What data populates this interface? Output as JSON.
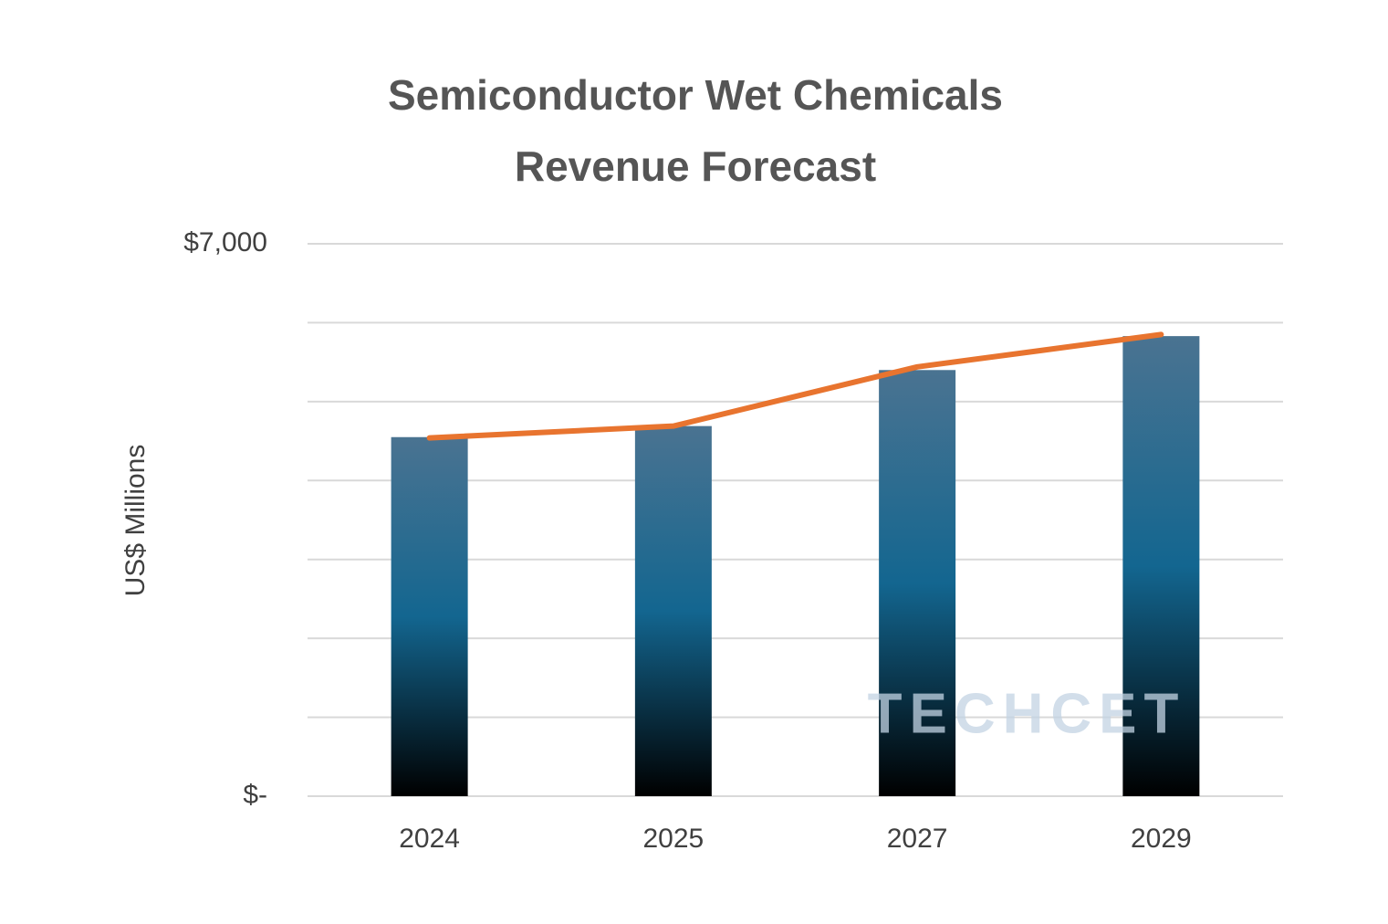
{
  "chart_data": {
    "type": "bar-line",
    "title": [
      "Semiconductor Wet Chemicals",
      "Revenue Forecast"
    ],
    "y_label": "US$ Millions",
    "watermark": "TECHCET",
    "categories": [
      "2024",
      "2025",
      "2027",
      "2029"
    ],
    "series": [
      {
        "type": "bar",
        "color": "#0b5479",
        "values": [
          4550,
          4690,
          5400,
          5830
        ]
      },
      {
        "type": "line",
        "color": "#e8742f",
        "values": [
          4540,
          4690,
          5440,
          5850
        ]
      }
    ],
    "ylim": [
      0,
      7000
    ],
    "yticks": [
      {
        "value": 0,
        "label": "$-"
      },
      {
        "value": 1000,
        "label": null
      },
      {
        "value": 2000,
        "label": null
      },
      {
        "value": 3000,
        "label": null
      },
      {
        "value": 4000,
        "label": null
      },
      {
        "value": 5000,
        "label": null
      },
      {
        "value": 6000,
        "label": null
      },
      {
        "value": 7000,
        "label": "$7,000"
      }
    ],
    "grid": true
  }
}
